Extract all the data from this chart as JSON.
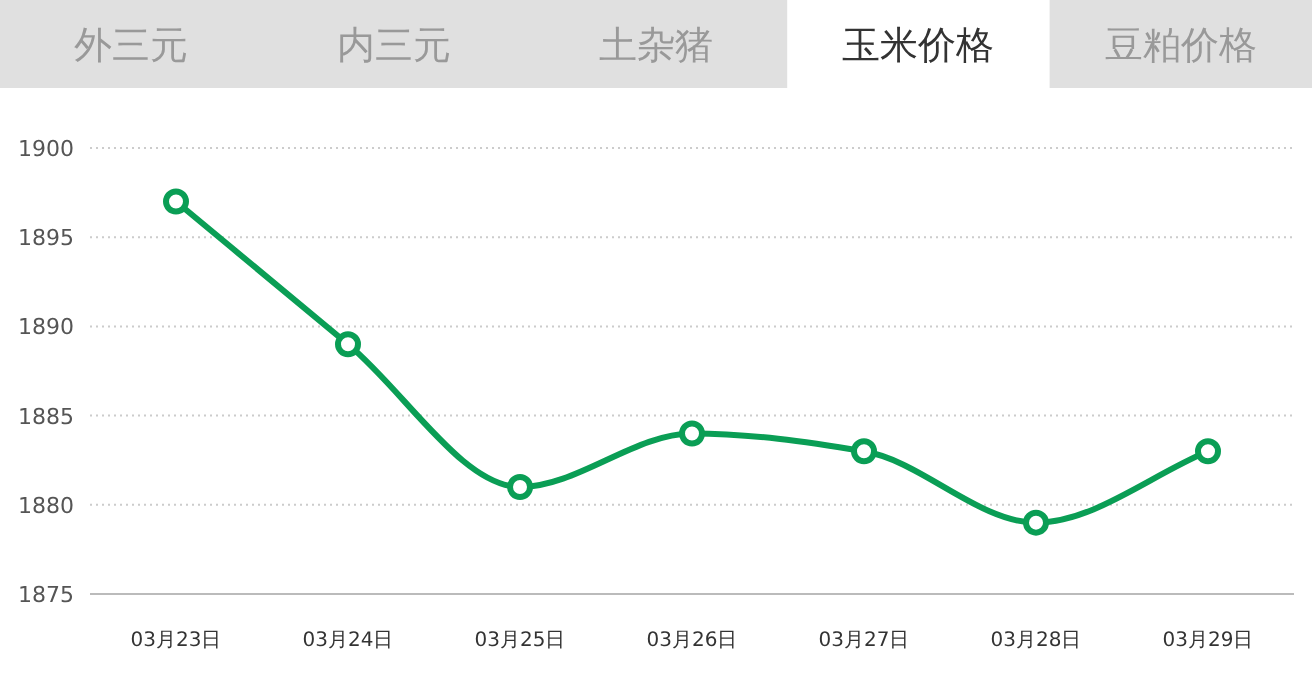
{
  "chart_data": {
    "type": "line",
    "title": "玉米价格",
    "annotations": [
      "外三元",
      "内三元",
      "土杂猪",
      "豆粕价格"
    ],
    "categories": [
      "03月23日",
      "03月24日",
      "03月25日",
      "03月26日",
      "03月27日",
      "03月28日",
      "03月29日"
    ],
    "series": [
      {
        "color": "#0a9e55",
        "values": [
          1897,
          1889,
          1881,
          1884,
          1883,
          1879,
          1883
        ]
      }
    ],
    "ylim": [
      1875,
      1900
    ],
    "yticks": [
      1875,
      1880,
      1885,
      1890,
      1895,
      1900
    ],
    "grid": "y",
    "marker": "circle",
    "line_style": "solid"
  }
}
